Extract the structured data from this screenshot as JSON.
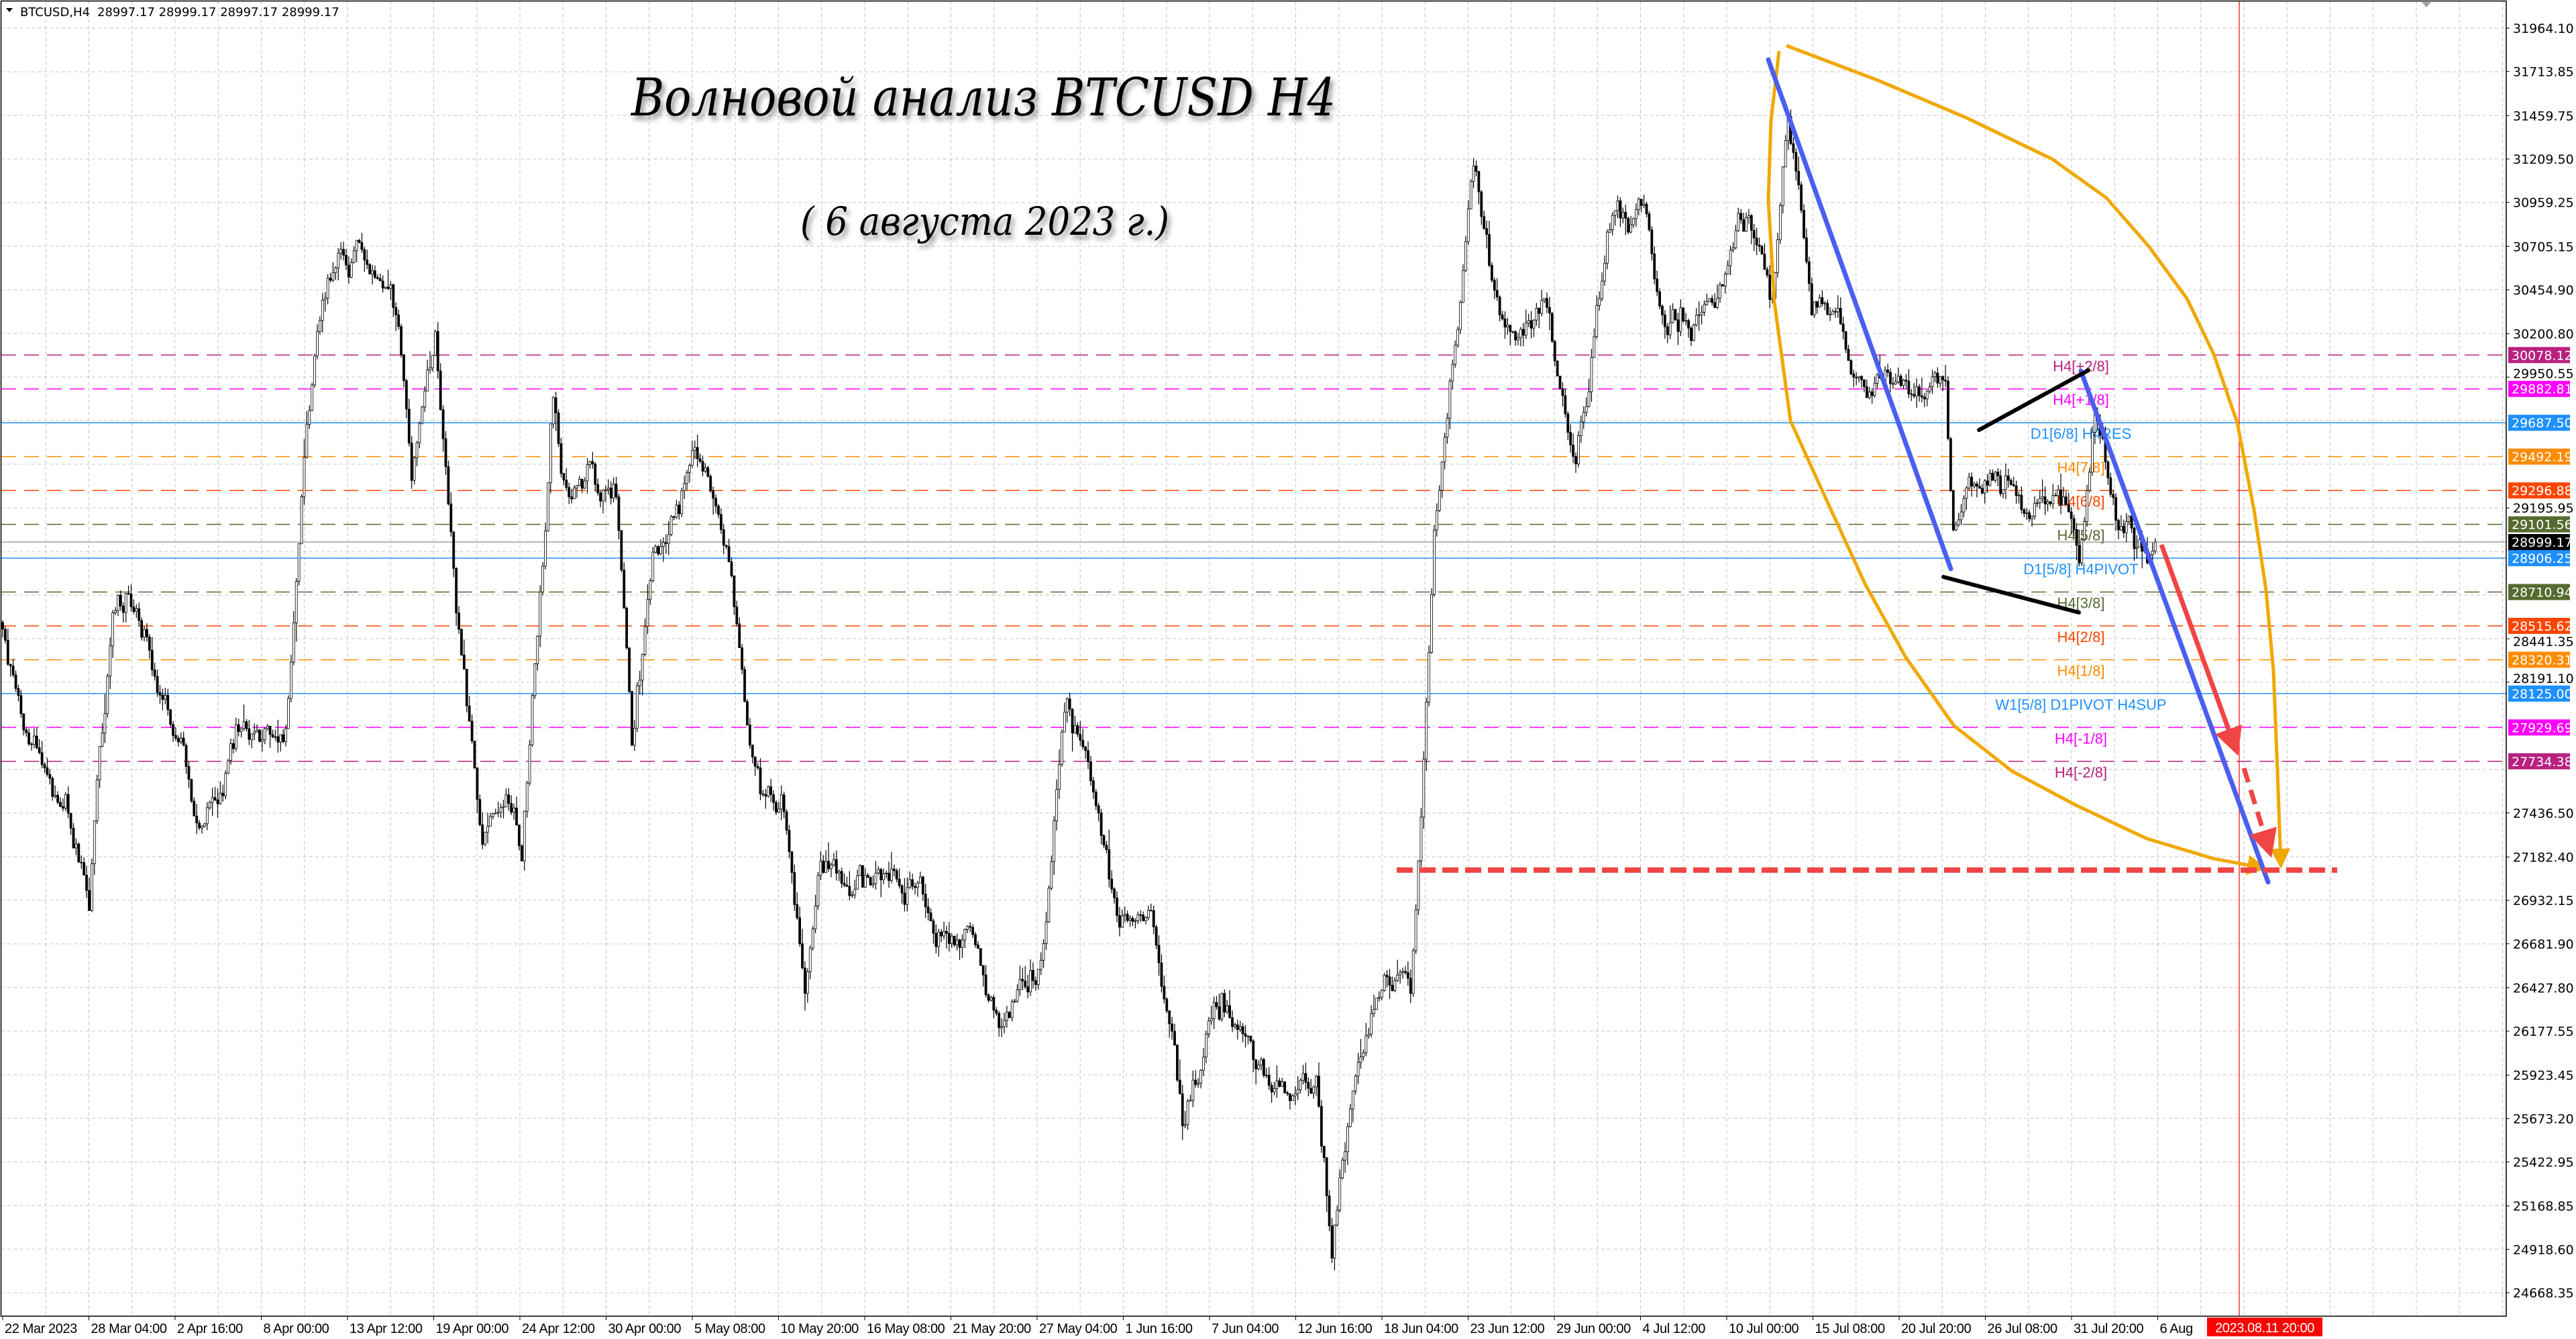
{
  "window": {
    "symbol_info": "BTCUSD,H4",
    "ohlc": "28997.17 28999.17 28997.17 28999.17",
    "menu_icon": "triangle-down-icon"
  },
  "annotations": {
    "title": "Волновой анализ BTCUSD H4",
    "subtitle": "( 6 августа 2023 г.)"
  },
  "price_axis": {
    "ticks": [
      "31964.10",
      "31713.85",
      "31459.75",
      "31209.50",
      "30959.25",
      "30705.15",
      "30454.90",
      "30200.80",
      "29950.55",
      "29195.95",
      "28441.35",
      "28191.10",
      "27436.50",
      "27182.40",
      "26932.15",
      "26681.90",
      "26427.80",
      "26177.55",
      "25923.45",
      "25673.20",
      "25422.95",
      "25168.85",
      "24918.60",
      "24668.35"
    ]
  },
  "time_axis": {
    "ticks": [
      "22 Mar 2023",
      "28 Mar 04:00",
      "2 Apr 16:00",
      "8 Apr 00:00",
      "13 Apr 12:00",
      "19 Apr 00:00",
      "24 Apr 12:00",
      "30 Apr 00:00",
      "5 May 08:00",
      "10 May 20:00",
      "16 May 08:00",
      "21 May 20:00",
      "27 May 04:00",
      "1 Jun 16:00",
      "7 Jun 04:00",
      "12 Jun 16:00",
      "18 Jun 04:00",
      "23 Jun 12:00",
      "29 Jun 00:00",
      "4 Jul 12:00",
      "10 Jul 00:00",
      "15 Jul 08:00",
      "20 Jul 20:00",
      "26 Jul 08:00",
      "31 Jul 20:00",
      "6 Aug"
    ],
    "cursor_label": "2023.08.11 20:00",
    "cursor_color": "#ff0000"
  },
  "levels": [
    {
      "label": "H4[+2/8]",
      "price": "30078.12",
      "color": "#b8217f",
      "style": "dashed"
    },
    {
      "label": "H4[+1/8]",
      "price": "29882.81",
      "color": "#ff00ff",
      "style": "dashed"
    },
    {
      "label": "D1[6/8] H4RES",
      "price": "29687.50",
      "color": "#1e90ff",
      "style": "solid"
    },
    {
      "label": "H4[7/8]",
      "price": "29492.19",
      "color": "#ff8c00",
      "style": "dashed"
    },
    {
      "label": "H4[6/8]",
      "price": "29296.88",
      "color": "#ff4500",
      "style": "dashed"
    },
    {
      "label": "H4[5/8]",
      "price": "29101.56",
      "color": "#556b2f",
      "style": "dashed"
    },
    {
      "label": "D1[5/8] H4PIVOT",
      "price": "28906.25",
      "color": "#1e90ff",
      "style": "solid"
    },
    {
      "label": "H4[3/8]",
      "price": "28710.94",
      "color": "#556b2f",
      "style": "dashed"
    },
    {
      "label": "H4[2/8]",
      "price": "28515.62",
      "color": "#ff4500",
      "style": "dashed"
    },
    {
      "label": "H4[1/8]",
      "price": "28320.31",
      "color": "#ff8c00",
      "style": "dashed"
    },
    {
      "label": "W1[5/8] D1PIVOT H4SUP",
      "price": "28125.00",
      "color": "#1e90ff",
      "style": "solid"
    },
    {
      "label": "H4[-1/8]",
      "price": "27929.69",
      "color": "#ff00ff",
      "style": "dashed"
    },
    {
      "label": "H4[-2/8]",
      "price": "27734.38",
      "color": "#b8217f",
      "style": "dashed"
    }
  ],
  "current_price": {
    "value": "28999.17",
    "color": "#000000"
  },
  "drawing_colors": {
    "trend_blue": "#4a5ff0",
    "wedge_black": "#000000",
    "forecast_red": "#f04545",
    "arc_orange": "#f0a800",
    "target_red": "#f04545"
  },
  "chart_data": {
    "type": "candlestick",
    "timeframe": "H4",
    "symbol": "BTCUSD",
    "ylim": [
      24668.35,
      31964.1
    ],
    "grid": true,
    "target_level": 27100,
    "close_path": {
      "x": [
        "2023-03-22T00:00",
        "2023-03-23T00:00",
        "2023-03-25T00:00",
        "2023-03-27T12:00",
        "2023-03-29T00:00",
        "2023-03-31T00:00",
        "2023-04-02T12:00",
        "2023-04-03T12:00",
        "2023-04-06T12:00",
        "2023-04-09T00:00",
        "2023-04-10T00:00",
        "2023-04-11T00:00",
        "2023-04-13T12:00",
        "2023-04-16T00:00",
        "2023-04-17T00:00",
        "2023-04-18T12:00",
        "2023-04-20T00:00",
        "2023-04-21T12:00",
        "2023-04-23T00:00",
        "2023-04-24T00:00",
        "2023-04-26T00:00",
        "2023-04-27T00:00",
        "2023-04-28T12:00",
        "2023-04-30T00:00",
        "2023-05-01T00:00",
        "2023-05-02T12:00",
        "2023-05-05T00:00",
        "2023-05-07T00:00",
        "2023-05-08T12:00",
        "2023-05-10T12:00",
        "2023-05-12T00:00",
        "2023-05-13T00:00",
        "2023-05-16T00:00",
        "2023-05-19T12:00",
        "2023-05-22T12:00",
        "2023-05-24T12:00",
        "2023-05-27T00:00",
        "2023-05-28T12:00",
        "2023-05-30T00:00",
        "2023-06-01T00:00",
        "2023-06-03T00:00",
        "2023-06-05T00:00",
        "2023-06-07T12:00",
        "2023-06-09T12:00",
        "2023-06-11T12:00",
        "2023-06-13T12:00",
        "2023-06-14T12:00",
        "2023-06-16T00:00",
        "2023-06-18T00:00",
        "2023-06-19T12:00",
        "2023-06-20T00:00",
        "2023-06-21T00:00",
        "2023-06-22T00:00",
        "2023-06-23T12:00",
        "2023-06-24T12:00",
        "2023-06-26T00:00",
        "2023-06-28T00:00",
        "2023-06-30T00:00",
        "2023-07-02T00:00",
        "2023-07-04T00:00",
        "2023-07-05T12:00",
        "2023-07-06T12:00",
        "2023-07-08T12:00",
        "2023-07-11T00:00",
        "2023-07-12T12:00",
        "2023-07-13T12:00",
        "2023-07-15T00:00",
        "2023-07-17T00:00",
        "2023-07-18T12:00",
        "2023-07-21T00:00",
        "2023-07-23T12:00",
        "2023-07-24T00:00",
        "2023-07-26T12:00",
        "2023-07-28T12:00",
        "2023-07-31T00:00",
        "2023-08-01T00:00",
        "2023-08-02T00:00",
        "2023-08-03T12:00",
        "2023-08-05T20:00"
      ],
      "y": [
        28496,
        28114,
        27636,
        26873,
        28591,
        28496,
        27827,
        27350,
        27923,
        27923,
        29260,
        30214,
        30740,
        30310,
        29355,
        30214,
        28496,
        27255,
        27541,
        27159,
        29832,
        29260,
        29450,
        29260,
        27827,
        28973,
        29546,
        28973,
        27827,
        27541,
        26395,
        27159,
        27064,
        26968,
        26777,
        26204,
        26586,
        28018,
        27732,
        26777,
        26873,
        25631,
        26395,
        26013,
        25822,
        25918,
        24868,
        25918,
        26491,
        26395,
        27159,
        29069,
        29928,
        31169,
        30596,
        30214,
        30405,
        29450,
        30787,
        30978,
        30310,
        30214,
        30405,
        30883,
        30405,
        31456,
        30310,
        30214,
        29832,
        29928,
        29928,
        29069,
        29355,
        29164,
        29260,
        28878,
        29737,
        29069,
        28999.17
      ]
    }
  }
}
